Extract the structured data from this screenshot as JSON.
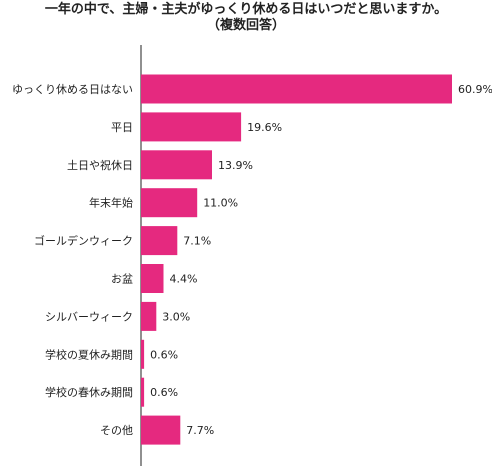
{
  "chart_data": {
    "type": "bar",
    "orientation": "horizontal",
    "title": "一年の中で、主婦・主夫がゆっくり休める日はいつだと思いますか。",
    "subtitle": "（複数回答）",
    "bar_color": "#E5297F",
    "value_suffix": "%",
    "categories": [
      "ゆっくり休める日はない",
      "平日",
      "土日や祝休日",
      "年末年始",
      "ゴールデンウィーク",
      "お盆",
      "シルバーウィーク",
      "学校の夏休み期間",
      "学校の春休み期間",
      "その他"
    ],
    "values": [
      60.9,
      19.6,
      13.9,
      11.0,
      7.1,
      4.4,
      3.0,
      0.6,
      0.6,
      7.7
    ],
    "value_labels": [
      "60.9%",
      "19.6%",
      "13.9%",
      "11.0%",
      "7.1%",
      "4.4%",
      "3.0%",
      "0.6%",
      "0.6%",
      "7.7%"
    ],
    "xlim": [
      0,
      63
    ],
    "grid": false
  }
}
